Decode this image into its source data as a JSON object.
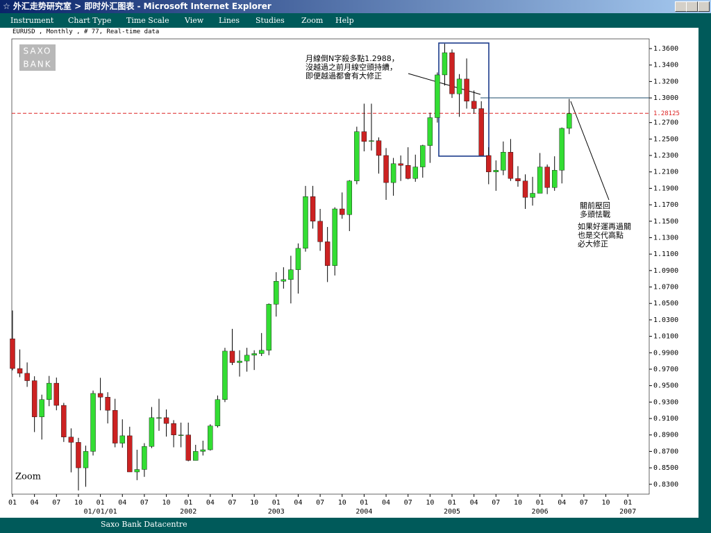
{
  "window": {
    "title": "☆ 外汇走势研究室 > 即时外汇图表 - Microsoft Internet Explorer",
    "menu": [
      "Instrument",
      "Chart Type",
      "Time Scale",
      "View",
      "Lines",
      "Studies",
      "Zoom",
      "Help"
    ],
    "status": "Saxo Bank Datacentre"
  },
  "chart_data": {
    "type": "candlestick",
    "title": "EURUSD , Monthly , # 77, Real-time data",
    "logo": [
      "SAXO",
      "BANK"
    ],
    "zoom_label": "Zoom",
    "up_color": "#33dd33",
    "down_color": "#cc2222",
    "open": [
      1.007,
      0.9708,
      0.965,
      0.956,
      0.912,
      0.933,
      0.953,
      0.926,
      0.8875,
      0.881,
      0.85,
      0.87,
      0.9405,
      0.936,
      0.92,
      0.88,
      0.889,
      0.845,
      0.848,
      0.876,
      0.911,
      0.911,
      0.904,
      0.89,
      0.89,
      0.859,
      0.87,
      0.872,
      0.901,
      0.933,
      0.992,
      0.978,
      0.98,
      0.987,
      0.989,
      0.993,
      1.049,
      1.077,
      1.079,
      1.091,
      1.117,
      1.18,
      1.15,
      1.125,
      1.096,
      1.165,
      1.158,
      1.199,
      1.259,
      1.247,
      1.248,
      1.23,
      1.197,
      1.22,
      1.218,
      1.202,
      1.216,
      1.242,
      1.276,
      1.328,
      1.355,
      1.305,
      1.323,
      1.296,
      1.287,
      1.23,
      1.21,
      1.212,
      1.234,
      1.202,
      1.199,
      1.179,
      1.184,
      1.216,
      1.191,
      1.212,
      1.263
    ],
    "high": [
      1.0414,
      0.994,
      0.9782,
      0.9614,
      0.939,
      0.9618,
      0.9598,
      0.929,
      0.898,
      0.8865,
      0.877,
      0.944,
      0.9595,
      0.942,
      0.934,
      0.909,
      0.9,
      0.872,
      0.88,
      0.924,
      0.934,
      0.921,
      0.908,
      0.905,
      0.905,
      0.878,
      0.883,
      0.903,
      0.938,
      0.996,
      1.019,
      0.993,
      0.996,
      0.993,
      1.014,
      1.05,
      1.088,
      1.094,
      1.108,
      1.123,
      1.193,
      1.193,
      1.165,
      1.143,
      1.167,
      1.185,
      1.2,
      1.265,
      1.293,
      1.293,
      1.252,
      1.239,
      1.227,
      1.23,
      1.24,
      1.231,
      1.243,
      1.282,
      1.331,
      1.366,
      1.359,
      1.329,
      1.348,
      1.309,
      1.296,
      1.24,
      1.224,
      1.247,
      1.25,
      1.217,
      1.207,
      1.204,
      1.233,
      1.219,
      1.229,
      1.264,
      1.2988
    ],
    "low": [
      0.9686,
      0.9603,
      0.9485,
      0.8935,
      0.8844,
      0.925,
      0.92,
      0.8815,
      0.8445,
      0.8225,
      0.827,
      0.865,
      0.92,
      0.904,
      0.875,
      0.8745,
      0.845,
      0.835,
      0.839,
      0.874,
      0.895,
      0.888,
      0.875,
      0.875,
      0.858,
      0.859,
      0.865,
      0.871,
      0.899,
      0.93,
      0.975,
      0.961,
      0.967,
      0.969,
      0.986,
      0.987,
      1.034,
      1.068,
      1.05,
      1.062,
      1.113,
      1.141,
      1.114,
      1.076,
      1.084,
      1.153,
      1.138,
      1.195,
      1.235,
      1.236,
      1.208,
      1.176,
      1.181,
      1.199,
      1.201,
      1.198,
      1.203,
      1.221,
      1.27,
      1.315,
      1.3,
      1.277,
      1.287,
      1.281,
      1.231,
      1.195,
      1.187,
      1.206,
      1.199,
      1.192,
      1.165,
      1.169,
      1.188,
      1.183,
      1.187,
      1.196,
      1.256
    ],
    "close": [
      0.9708,
      0.965,
      0.956,
      0.912,
      0.933,
      0.953,
      0.926,
      0.8875,
      0.881,
      0.85,
      0.87,
      0.9405,
      0.936,
      0.92,
      0.88,
      0.889,
      0.845,
      0.848,
      0.876,
      0.911,
      0.911,
      0.904,
      0.89,
      0.89,
      0.859,
      0.87,
      0.872,
      0.901,
      0.933,
      0.992,
      0.978,
      0.98,
      0.987,
      0.989,
      0.993,
      1.049,
      1.077,
      1.079,
      1.091,
      1.117,
      1.18,
      1.15,
      1.125,
      1.096,
      1.165,
      1.158,
      1.199,
      1.259,
      1.247,
      1.248,
      1.23,
      1.197,
      1.22,
      1.218,
      1.202,
      1.216,
      1.242,
      1.276,
      1.328,
      1.355,
      1.305,
      1.323,
      1.296,
      1.287,
      1.23,
      1.21,
      1.212,
      1.234,
      1.202,
      1.199,
      1.179,
      1.184,
      1.216,
      1.191,
      1.212,
      1.263,
      1.281
    ],
    "ylim": [
      0.818,
      1.371
    ],
    "yticks": [
      {
        "value": 0.83,
        "label": "0.8300"
      },
      {
        "value": 0.85,
        "label": "0.8500"
      },
      {
        "value": 0.87,
        "label": "0.8700"
      },
      {
        "value": 0.89,
        "label": "0.8900"
      },
      {
        "value": 0.91,
        "label": "0.9100"
      },
      {
        "value": 0.93,
        "label": "0.9300"
      },
      {
        "value": 0.95,
        "label": "0.9500"
      },
      {
        "value": 0.97,
        "label": "0.9700"
      },
      {
        "value": 0.99,
        "label": "0.9900"
      },
      {
        "value": 1.01,
        "label": "1.0100"
      },
      {
        "value": 1.03,
        "label": "1.0300"
      },
      {
        "value": 1.05,
        "label": "1.0500"
      },
      {
        "value": 1.07,
        "label": "1.0700"
      },
      {
        "value": 1.09,
        "label": "1.0900"
      },
      {
        "value": 1.11,
        "label": "1.1100"
      },
      {
        "value": 1.13,
        "label": "1.1300"
      },
      {
        "value": 1.15,
        "label": "1.1500"
      },
      {
        "value": 1.17,
        "label": "1.1700"
      },
      {
        "value": 1.19,
        "label": "1.1900"
      },
      {
        "value": 1.21,
        "label": "1.2100"
      },
      {
        "value": 1.23,
        "label": "1.2300"
      },
      {
        "value": 1.25,
        "label": "1.2500"
      },
      {
        "value": 1.27,
        "label": "1.2700"
      },
      {
        "value": 1.3,
        "label": "1.3000"
      },
      {
        "value": 1.32,
        "label": "1.3200"
      },
      {
        "value": 1.34,
        "label": "1.3400"
      },
      {
        "value": 1.36,
        "label": "1.3600"
      }
    ],
    "price_line": 1.28125,
    "xtick_months": [
      "01",
      "04",
      "07",
      "10",
      "01",
      "04",
      "07",
      "10",
      "01",
      "04",
      "07",
      "10",
      "01",
      "04",
      "07",
      "10",
      "01",
      "04",
      "07",
      "10",
      "01",
      "04",
      "07",
      "10",
      "01",
      "04",
      "07",
      "10",
      "01"
    ],
    "xtick_years": [
      null,
      null,
      null,
      null,
      "01/01/01",
      null,
      null,
      null,
      "2002",
      null,
      null,
      null,
      "2003",
      null,
      null,
      null,
      "2004",
      null,
      null,
      null,
      "2005",
      null,
      null,
      null,
      "2006",
      null,
      null,
      null,
      "2007"
    ],
    "annotations": [
      [
        "月線倒N字殺多點1.2988，",
        "沒越過之前月線空頭持續，",
        "即便越過都會有大修正"
      ],
      [
        "關前壓回",
        "多頭怯戰"
      ],
      [
        "如果好運再過關",
        "也是交代高點",
        "必大修正"
      ]
    ]
  }
}
